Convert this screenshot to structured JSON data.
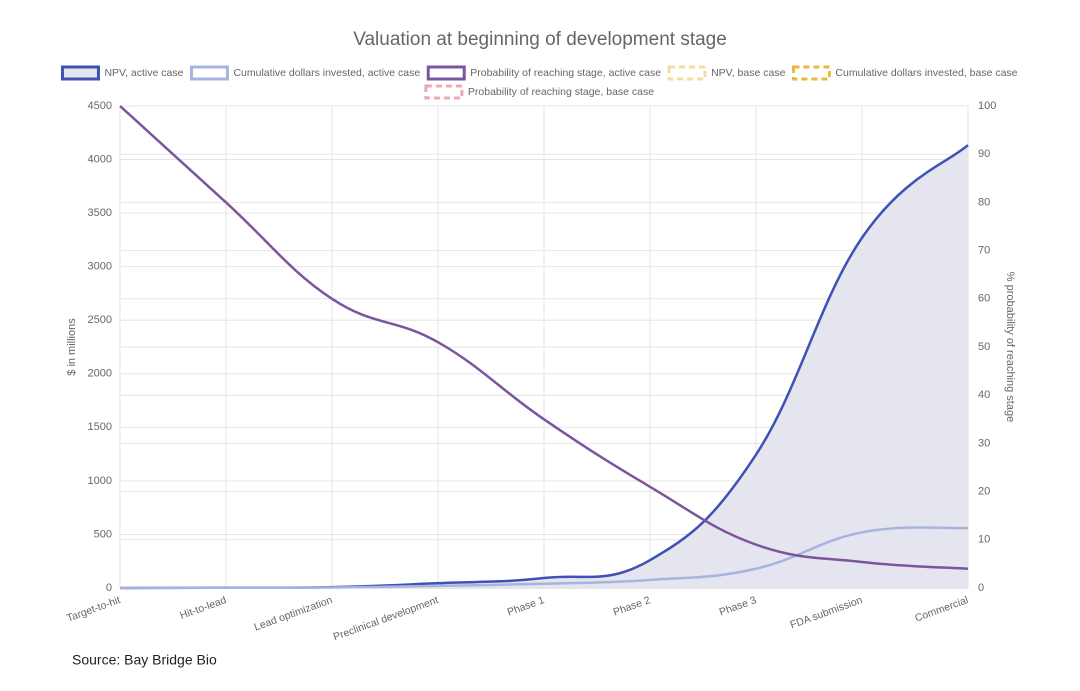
{
  "chart_data": {
    "type": "line",
    "title": "Valuation at beginning of development stage",
    "y_label": "$ in millions",
    "y2_label": "% probability of reaching stage",
    "source": "Source: Bay Bridge Bio",
    "categories": [
      "Target-to-hit",
      "Hit-to-lead",
      "Lead optimization",
      "Preclinical development",
      "Phase 1",
      "Phase 2",
      "Phase 3",
      "FDA submission",
      "Commercial"
    ],
    "series": [
      {
        "name": "NPV, active case",
        "color": "#3f51b5",
        "fill": "#e4e5ee",
        "values": [
          0,
          3,
          8,
          45,
          93,
          260,
          1245,
          3270,
          4135
        ]
      },
      {
        "name": "Cumulative dollars invested, active case",
        "color": "#a8b4df",
        "values": [
          0,
          2,
          5,
          20,
          40,
          75,
          180,
          520,
          560
        ]
      },
      {
        "name": "Probability of reaching stage, active case",
        "color": "#7b559e",
        "axis": "y2",
        "values": [
          100,
          80,
          60,
          51,
          35,
          21,
          9,
          5.4,
          4
        ]
      },
      {
        "name": "NPV, base case",
        "color": "#f3dca0",
        "dashed": true,
        "values": [
          null,
          null,
          null,
          null,
          null,
          null,
          null,
          null,
          null
        ]
      },
      {
        "name": "Cumulative dollars invested, base case",
        "color": "#e8b93c",
        "dashed": true,
        "values": [
          null,
          null,
          null,
          null,
          null,
          null,
          null,
          null,
          null
        ]
      },
      {
        "name": "Probability of reaching stage, base case",
        "color": "#f1a7b0",
        "dashed": true,
        "axis": "y2",
        "values": [
          null,
          null,
          null,
          null,
          null,
          null,
          null,
          null,
          null
        ]
      }
    ],
    "ylim": [
      0,
      4500
    ],
    "yticks": [
      0,
      500,
      1000,
      1500,
      2000,
      2500,
      3000,
      3500,
      4000,
      4500
    ],
    "y2lim": [
      0,
      100
    ],
    "y2ticks": [
      0,
      10,
      20,
      30,
      40,
      50,
      60,
      70,
      80,
      90,
      100
    ],
    "grid": true,
    "legend": "top"
  }
}
